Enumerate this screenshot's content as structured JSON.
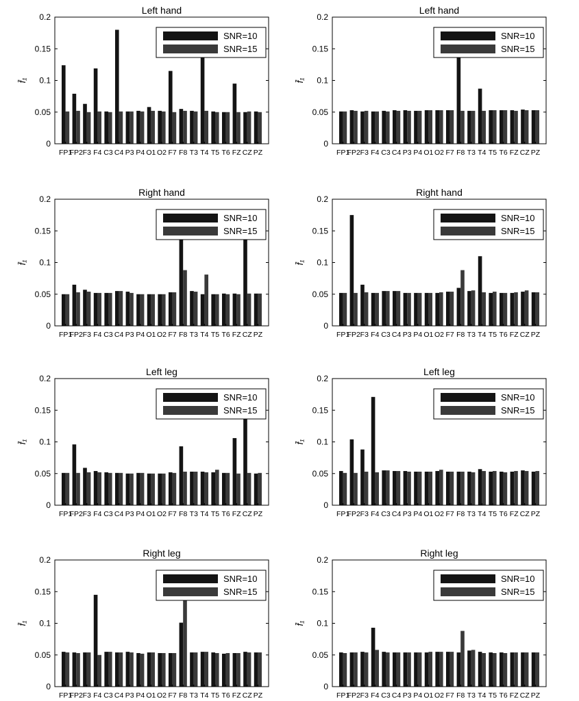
{
  "figure": {
    "colors": {
      "snr10": "#141414",
      "snr15": "#3a3a3a",
      "axis": "#000000",
      "background": "#ffffff"
    }
  },
  "chart_data": [
    {
      "type": "bar",
      "title": "Left hand",
      "ylabel": "f̄₁",
      "categories": [
        "FP1",
        "FP2",
        "F3",
        "F4",
        "C3",
        "C4",
        "P3",
        "P4",
        "O1",
        "O2",
        "F7",
        "F8",
        "T3",
        "T4",
        "T5",
        "T6",
        "FZ",
        "CZ",
        "PZ"
      ],
      "ylim": [
        0,
        0.2
      ],
      "yticks": [
        "0",
        "0.05",
        "0.1",
        "0.15",
        "0.2"
      ],
      "legend_position": "top-right",
      "series": [
        {
          "name": "SNR=10",
          "values": [
            0.124,
            0.079,
            0.063,
            0.119,
            0.051,
            0.18,
            0.051,
            0.052,
            0.058,
            0.052,
            0.115,
            0.055,
            0.052,
            0.148,
            0.051,
            0.05,
            0.095,
            0.05,
            0.051
          ]
        },
        {
          "name": "SNR=15",
          "values": [
            0.051,
            0.052,
            0.05,
            0.051,
            0.05,
            0.051,
            0.051,
            0.051,
            0.052,
            0.051,
            0.05,
            0.052,
            0.051,
            0.052,
            0.05,
            0.05,
            0.05,
            0.051,
            0.05
          ]
        }
      ]
    },
    {
      "type": "bar",
      "title": "Left hand",
      "ylabel": "f̄₁",
      "categories": [
        "FP1",
        "FP2",
        "F3",
        "F4",
        "C3",
        "C4",
        "P3",
        "P4",
        "O1",
        "O2",
        "F7",
        "F8",
        "T3",
        "T4",
        "T5",
        "T6",
        "FZ",
        "CZ",
        "PZ"
      ],
      "ylim": [
        0,
        0.2
      ],
      "yticks": [
        "0",
        "0.05",
        "0.1",
        "0.15",
        "0.2"
      ],
      "legend_position": "top-right",
      "series": [
        {
          "name": "SNR=10",
          "values": [
            0.051,
            0.053,
            0.051,
            0.051,
            0.052,
            0.053,
            0.053,
            0.052,
            0.053,
            0.053,
            0.053,
            0.15,
            0.052,
            0.087,
            0.053,
            0.053,
            0.053,
            0.054,
            0.053
          ]
        },
        {
          "name": "SNR=15",
          "values": [
            0.051,
            0.052,
            0.052,
            0.051,
            0.051,
            0.052,
            0.052,
            0.052,
            0.053,
            0.053,
            0.053,
            0.052,
            0.052,
            0.052,
            0.053,
            0.053,
            0.052,
            0.053,
            0.053
          ]
        }
      ]
    },
    {
      "type": "bar",
      "title": "Right hand",
      "ylabel": "f̄₁",
      "categories": [
        "FP1",
        "FP2",
        "F3",
        "F4",
        "C3",
        "C4",
        "P3",
        "P4",
        "O1",
        "O2",
        "F7",
        "F8",
        "T3",
        "T4",
        "T5",
        "T6",
        "FZ",
        "CZ",
        "PZ"
      ],
      "ylim": [
        0,
        0.2
      ],
      "yticks": [
        "0",
        "0.05",
        "0.1",
        "0.15",
        "0.2"
      ],
      "legend_position": "top-right",
      "series": [
        {
          "name": "SNR=10",
          "values": [
            0.05,
            0.065,
            0.057,
            0.052,
            0.052,
            0.055,
            0.054,
            0.05,
            0.05,
            0.05,
            0.053,
            0.15,
            0.055,
            0.05,
            0.05,
            0.051,
            0.051,
            0.15,
            0.051
          ]
        },
        {
          "name": "SNR=15",
          "values": [
            0.05,
            0.053,
            0.054,
            0.052,
            0.052,
            0.055,
            0.052,
            0.05,
            0.05,
            0.05,
            0.053,
            0.088,
            0.054,
            0.081,
            0.05,
            0.05,
            0.05,
            0.051,
            0.051
          ]
        }
      ]
    },
    {
      "type": "bar",
      "title": "Right hand",
      "ylabel": "f̄₁",
      "categories": [
        "FP1",
        "FP2",
        "F3",
        "F4",
        "C3",
        "C4",
        "P3",
        "P4",
        "O1",
        "O2",
        "F7",
        "F8",
        "T3",
        "T4",
        "T5",
        "T6",
        "FZ",
        "CZ",
        "PZ"
      ],
      "ylim": [
        0,
        0.2
      ],
      "yticks": [
        "0",
        "0.05",
        "0.1",
        "0.15",
        "0.2"
      ],
      "legend_position": "top-right",
      "series": [
        {
          "name": "SNR=10",
          "values": [
            0.052,
            0.175,
            0.065,
            0.052,
            0.055,
            0.055,
            0.052,
            0.052,
            0.052,
            0.052,
            0.054,
            0.06,
            0.055,
            0.11,
            0.052,
            0.052,
            0.052,
            0.054,
            0.053
          ]
        },
        {
          "name": "SNR=15",
          "values": [
            0.052,
            0.052,
            0.053,
            0.052,
            0.055,
            0.055,
            0.052,
            0.052,
            0.052,
            0.053,
            0.054,
            0.088,
            0.056,
            0.053,
            0.054,
            0.052,
            0.053,
            0.056,
            0.053
          ]
        }
      ]
    },
    {
      "type": "bar",
      "title": "Left leg",
      "ylabel": "f̄₁",
      "categories": [
        "FP1",
        "FP2",
        "F3",
        "F4",
        "C3",
        "C4",
        "P3",
        "P4",
        "O1",
        "O2",
        "F7",
        "F8",
        "T3",
        "T4",
        "T5",
        "T6",
        "FZ",
        "CZ",
        "PZ"
      ],
      "ylim": [
        0,
        0.2
      ],
      "yticks": [
        "0",
        "0.05",
        "0.1",
        "0.15",
        "0.2"
      ],
      "legend_position": "top-right",
      "series": [
        {
          "name": "SNR=10",
          "values": [
            0.051,
            0.096,
            0.059,
            0.054,
            0.052,
            0.051,
            0.05,
            0.051,
            0.05,
            0.05,
            0.052,
            0.093,
            0.053,
            0.053,
            0.052,
            0.051,
            0.106,
            0.15,
            0.05
          ]
        },
        {
          "name": "SNR=15",
          "values": [
            0.051,
            0.051,
            0.052,
            0.052,
            0.051,
            0.051,
            0.05,
            0.051,
            0.05,
            0.05,
            0.051,
            0.053,
            0.053,
            0.052,
            0.056,
            0.051,
            0.05,
            0.051,
            0.051
          ]
        }
      ]
    },
    {
      "type": "bar",
      "title": "Left leg",
      "ylabel": "f̄₁",
      "categories": [
        "FP1",
        "FP2",
        "F3",
        "F4",
        "C3",
        "C4",
        "P3",
        "P4",
        "O1",
        "O2",
        "F7",
        "F8",
        "T3",
        "T4",
        "T5",
        "T6",
        "FZ",
        "CZ",
        "PZ"
      ],
      "ylim": [
        0,
        0.2
      ],
      "yticks": [
        "0",
        "0.05",
        "0.1",
        "0.15",
        "0.2"
      ],
      "legend_position": "top-right",
      "series": [
        {
          "name": "SNR=10",
          "values": [
            0.054,
            0.104,
            0.088,
            0.171,
            0.055,
            0.054,
            0.054,
            0.053,
            0.053,
            0.054,
            0.053,
            0.053,
            0.053,
            0.057,
            0.053,
            0.053,
            0.053,
            0.055,
            0.053
          ]
        },
        {
          "name": "SNR=15",
          "values": [
            0.051,
            0.051,
            0.053,
            0.052,
            0.055,
            0.054,
            0.053,
            0.053,
            0.053,
            0.056,
            0.053,
            0.053,
            0.052,
            0.054,
            0.054,
            0.052,
            0.054,
            0.054,
            0.054
          ]
        }
      ]
    },
    {
      "type": "bar",
      "title": "Right leg",
      "ylabel": "f̄₁",
      "categories": [
        "FP1",
        "FP2",
        "F3",
        "F4",
        "C3",
        "C4",
        "P3",
        "P4",
        "O1",
        "O2",
        "F7",
        "F8",
        "T3",
        "T4",
        "T5",
        "T6",
        "FZ",
        "CZ",
        "PZ"
      ],
      "ylim": [
        0,
        0.2
      ],
      "yticks": [
        "0",
        "0.05",
        "0.1",
        "0.15",
        "0.2"
      ],
      "legend_position": "top-right",
      "series": [
        {
          "name": "SNR=10",
          "values": [
            0.055,
            0.054,
            0.054,
            0.145,
            0.055,
            0.054,
            0.055,
            0.053,
            0.054,
            0.053,
            0.053,
            0.101,
            0.054,
            0.055,
            0.054,
            0.052,
            0.053,
            0.055,
            0.054
          ]
        },
        {
          "name": "SNR=15",
          "values": [
            0.054,
            0.053,
            0.054,
            0.05,
            0.055,
            0.054,
            0.054,
            0.052,
            0.054,
            0.053,
            0.053,
            0.15,
            0.054,
            0.055,
            0.053,
            0.053,
            0.053,
            0.054,
            0.054
          ]
        }
      ]
    },
    {
      "type": "bar",
      "title": "Right leg",
      "ylabel": "f̄₁",
      "categories": [
        "FP1",
        "FP2",
        "F3",
        "F4",
        "C3",
        "C4",
        "P3",
        "P4",
        "O1",
        "O2",
        "F7",
        "F8",
        "T3",
        "T4",
        "T5",
        "T6",
        "FZ",
        "CZ",
        "PZ"
      ],
      "ylim": [
        0,
        0.2
      ],
      "yticks": [
        "0",
        "0.05",
        "0.1",
        "0.15",
        "0.2"
      ],
      "legend_position": "top-right",
      "series": [
        {
          "name": "SNR=10",
          "values": [
            0.054,
            0.054,
            0.055,
            0.093,
            0.055,
            0.054,
            0.054,
            0.054,
            0.054,
            0.055,
            0.055,
            0.054,
            0.057,
            0.055,
            0.054,
            0.054,
            0.054,
            0.054,
            0.054
          ]
        },
        {
          "name": "SNR=15",
          "values": [
            0.053,
            0.054,
            0.054,
            0.058,
            0.054,
            0.054,
            0.054,
            0.054,
            0.055,
            0.055,
            0.055,
            0.088,
            0.058,
            0.053,
            0.053,
            0.053,
            0.054,
            0.054,
            0.054
          ]
        }
      ]
    }
  ]
}
